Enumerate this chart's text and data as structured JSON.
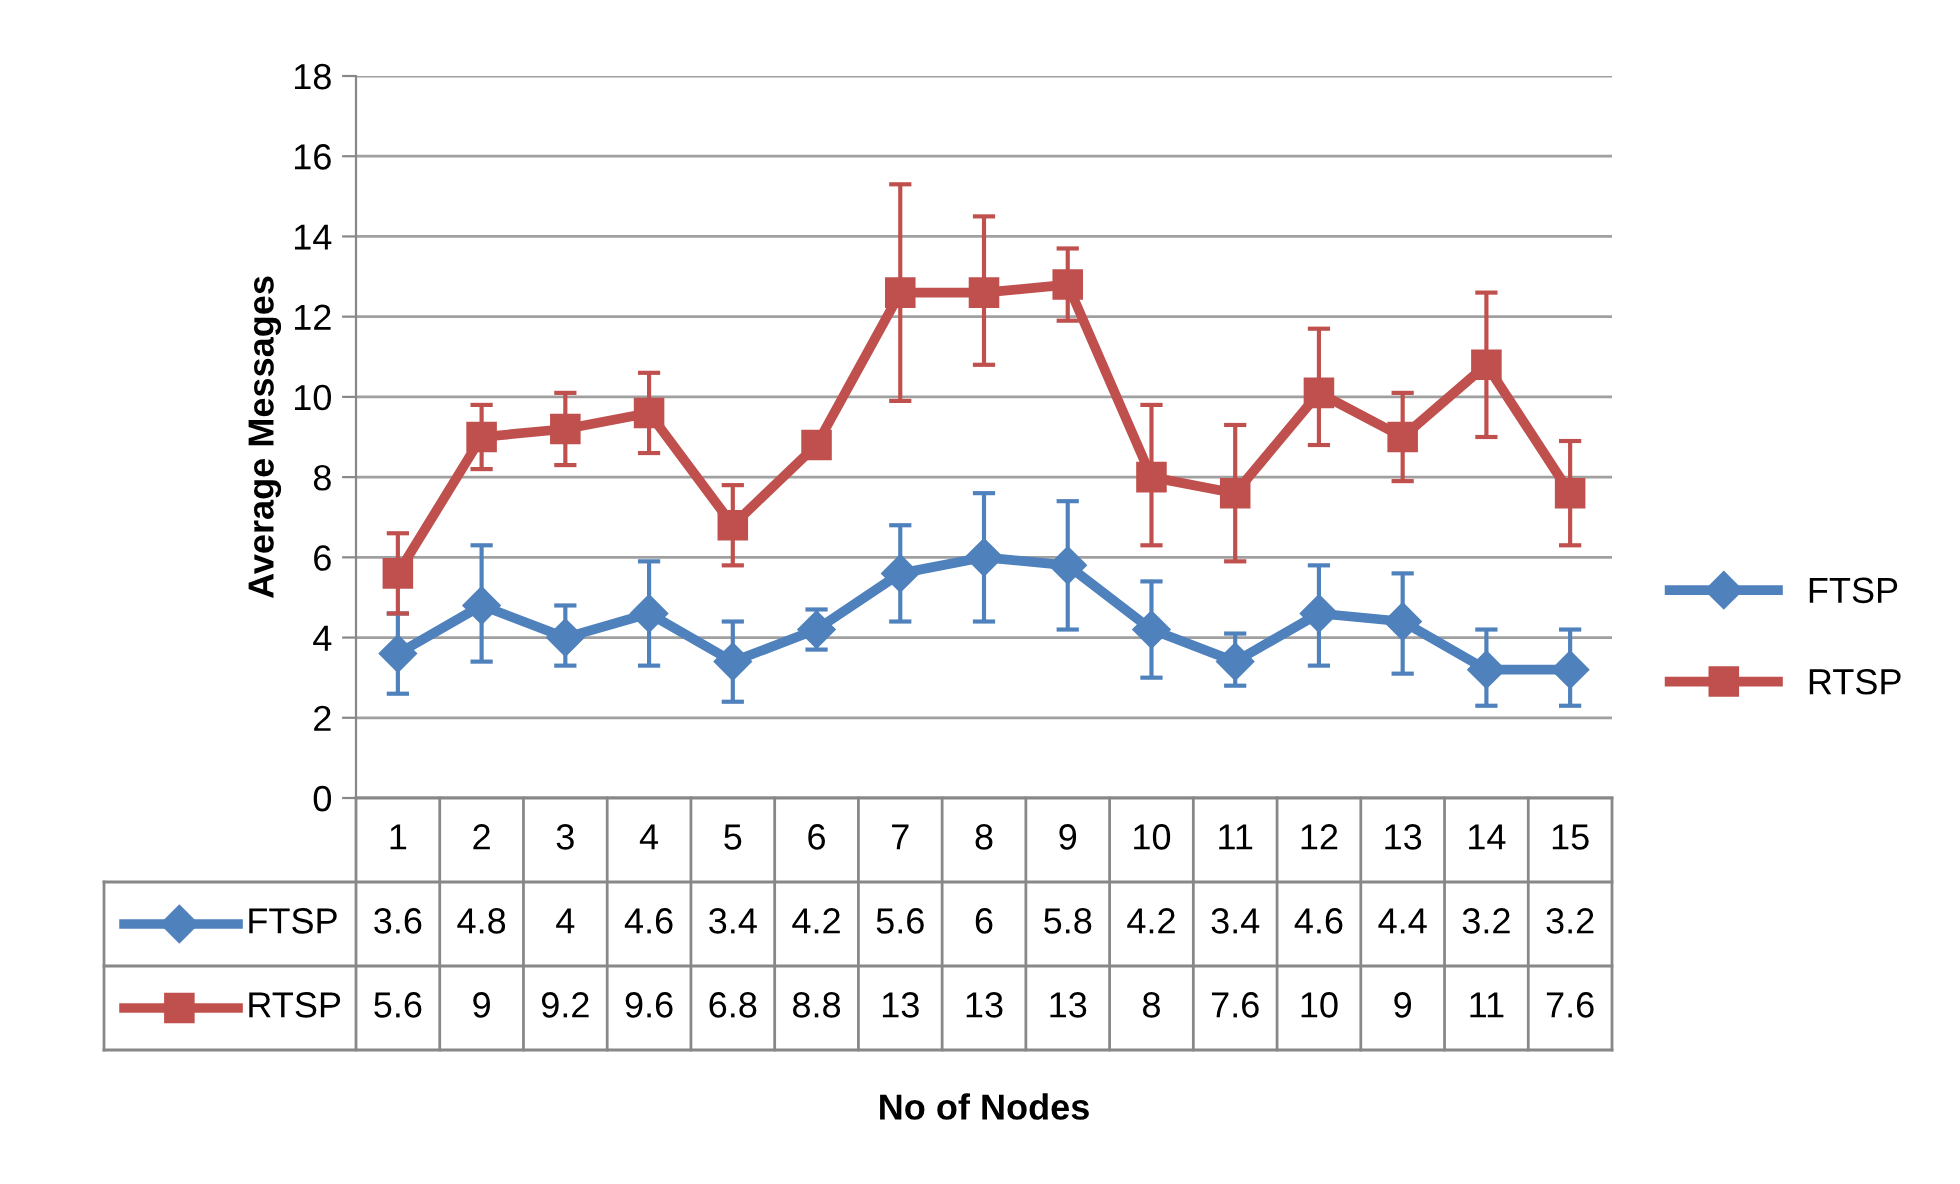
{
  "chart_data": {
    "type": "line",
    "annotations": [
      "No of Nodes"
    ],
    "ylabel": "Average Messages",
    "categories": [
      "1",
      "2",
      "3",
      "4",
      "5",
      "6",
      "7",
      "8",
      "9",
      "10",
      "11",
      "12",
      "13",
      "14",
      "15"
    ],
    "ylim": [
      0,
      18
    ],
    "yticks": [
      0,
      2,
      4,
      6,
      8,
      10,
      12,
      14,
      16,
      18
    ],
    "grid": "y",
    "legend": "right",
    "line_style": "solid",
    "series": [
      {
        "name": "FTSP",
        "color": "#4f81bd",
        "marker": "diamond",
        "values": [
          3.6,
          4.8,
          4,
          4.6,
          3.4,
          4.2,
          5.6,
          6,
          5.8,
          4.2,
          3.4,
          4.6,
          4.4,
          3.2,
          3.2
        ],
        "value_labels": [
          "3.6",
          "4.8",
          "4",
          "4.6",
          "3.4",
          "4.2",
          "5.6",
          "6",
          "5.8",
          "4.2",
          "3.4",
          "4.6",
          "4.4",
          "3.2",
          "3.2"
        ],
        "errors": [
          [
            2.6,
            4.6
          ],
          [
            3.4,
            6.3
          ],
          [
            3.3,
            4.8
          ],
          [
            3.3,
            5.9
          ],
          [
            2.4,
            4.4
          ],
          [
            3.7,
            4.7
          ],
          [
            4.4,
            6.8
          ],
          [
            4.4,
            7.6
          ],
          [
            4.2,
            7.4
          ],
          [
            3.0,
            5.4
          ],
          [
            2.8,
            4.1
          ],
          [
            3.3,
            5.8
          ],
          [
            3.1,
            5.6
          ],
          [
            2.3,
            4.2
          ],
          [
            2.3,
            4.2
          ]
        ]
      },
      {
        "name": "RTSP",
        "color": "#c0504d",
        "marker": "square",
        "values": [
          5.6,
          9.0,
          9.2,
          9.6,
          6.8,
          8.8,
          12.6,
          12.6,
          12.8,
          8.0,
          7.6,
          10.1,
          9.0,
          10.8,
          7.6
        ],
        "value_labels": [
          "5.6",
          "9",
          "9.2",
          "9.6",
          "6.8",
          "8.8",
          "13",
          "13",
          "13",
          "8",
          "7.6",
          "10",
          "9",
          "11",
          "7.6"
        ],
        "errors": [
          [
            4.6,
            6.6
          ],
          [
            8.2,
            9.8
          ],
          [
            8.3,
            10.1
          ],
          [
            8.6,
            10.6
          ],
          [
            5.8,
            7.8
          ],
          null,
          [
            9.9,
            15.3
          ],
          [
            10.8,
            14.5
          ],
          [
            11.9,
            13.7
          ],
          [
            6.3,
            9.8
          ],
          [
            5.9,
            9.3
          ],
          [
            8.8,
            11.7
          ],
          [
            7.9,
            10.1
          ],
          [
            9.0,
            12.6
          ],
          [
            6.3,
            8.9
          ]
        ]
      }
    ]
  }
}
